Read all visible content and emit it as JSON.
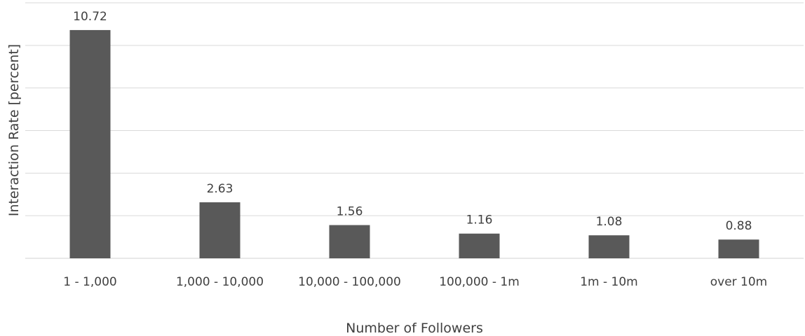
{
  "chart_data": {
    "type": "bar",
    "categories": [
      "1 - 1,000",
      "1,000 - 10,000",
      "10,000 - 100,000",
      "100,000 - 1m",
      "1m - 10m",
      "over 10m"
    ],
    "values": [
      10.72,
      2.63,
      1.56,
      1.16,
      1.08,
      0.88
    ],
    "data_labels": [
      "10.72",
      "2.63",
      "1.56",
      "1.16",
      "1.08",
      "0.88"
    ],
    "xlabel": "Number of Followers",
    "ylabel": "Interaction Rate [percent]",
    "ylim": [
      0,
      12
    ],
    "y_grid_step": 2,
    "grid": true,
    "y_tick_labels_shown": false,
    "bar_color": "#595959",
    "grid_color": "#d9d9d9",
    "text_color": "#404040"
  }
}
